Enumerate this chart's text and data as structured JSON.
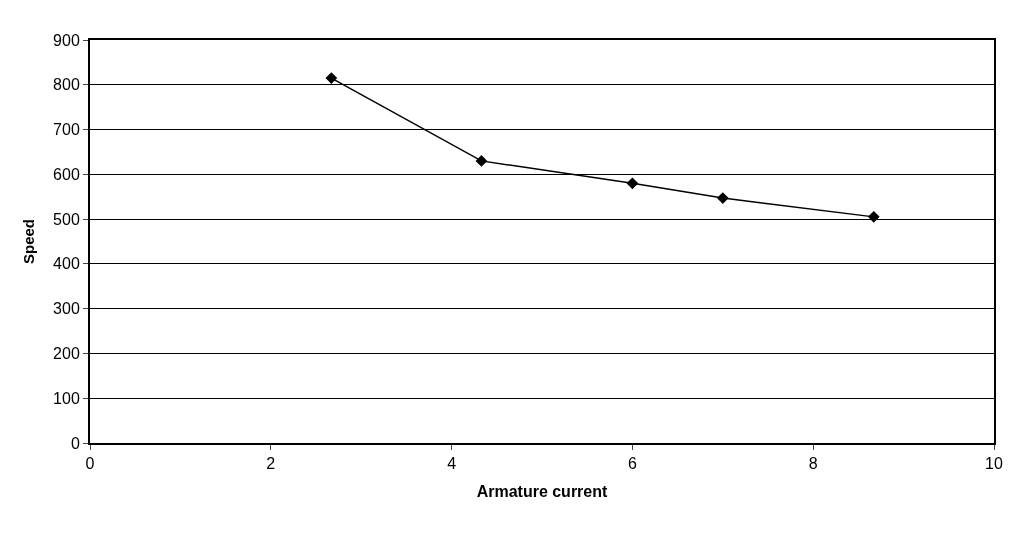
{
  "chart_data": {
    "type": "line",
    "xlabel": "Armature current",
    "ylabel": "Speed",
    "x": [
      2.67,
      4.33,
      6,
      7,
      8.67
    ],
    "series": [
      {
        "color": "#000000",
        "values": [
          815,
          630,
          580,
          547,
          505
        ]
      }
    ],
    "xlim": [
      0,
      10
    ],
    "xticks": [
      0,
      2,
      4,
      6,
      8,
      10
    ],
    "ylim": [
      0,
      900
    ],
    "yticks": [
      0,
      100,
      200,
      300,
      400,
      500,
      600,
      700,
      800,
      900
    ],
    "grid": "y",
    "legend": false,
    "marker": "diamond",
    "line_style": "solid"
  }
}
